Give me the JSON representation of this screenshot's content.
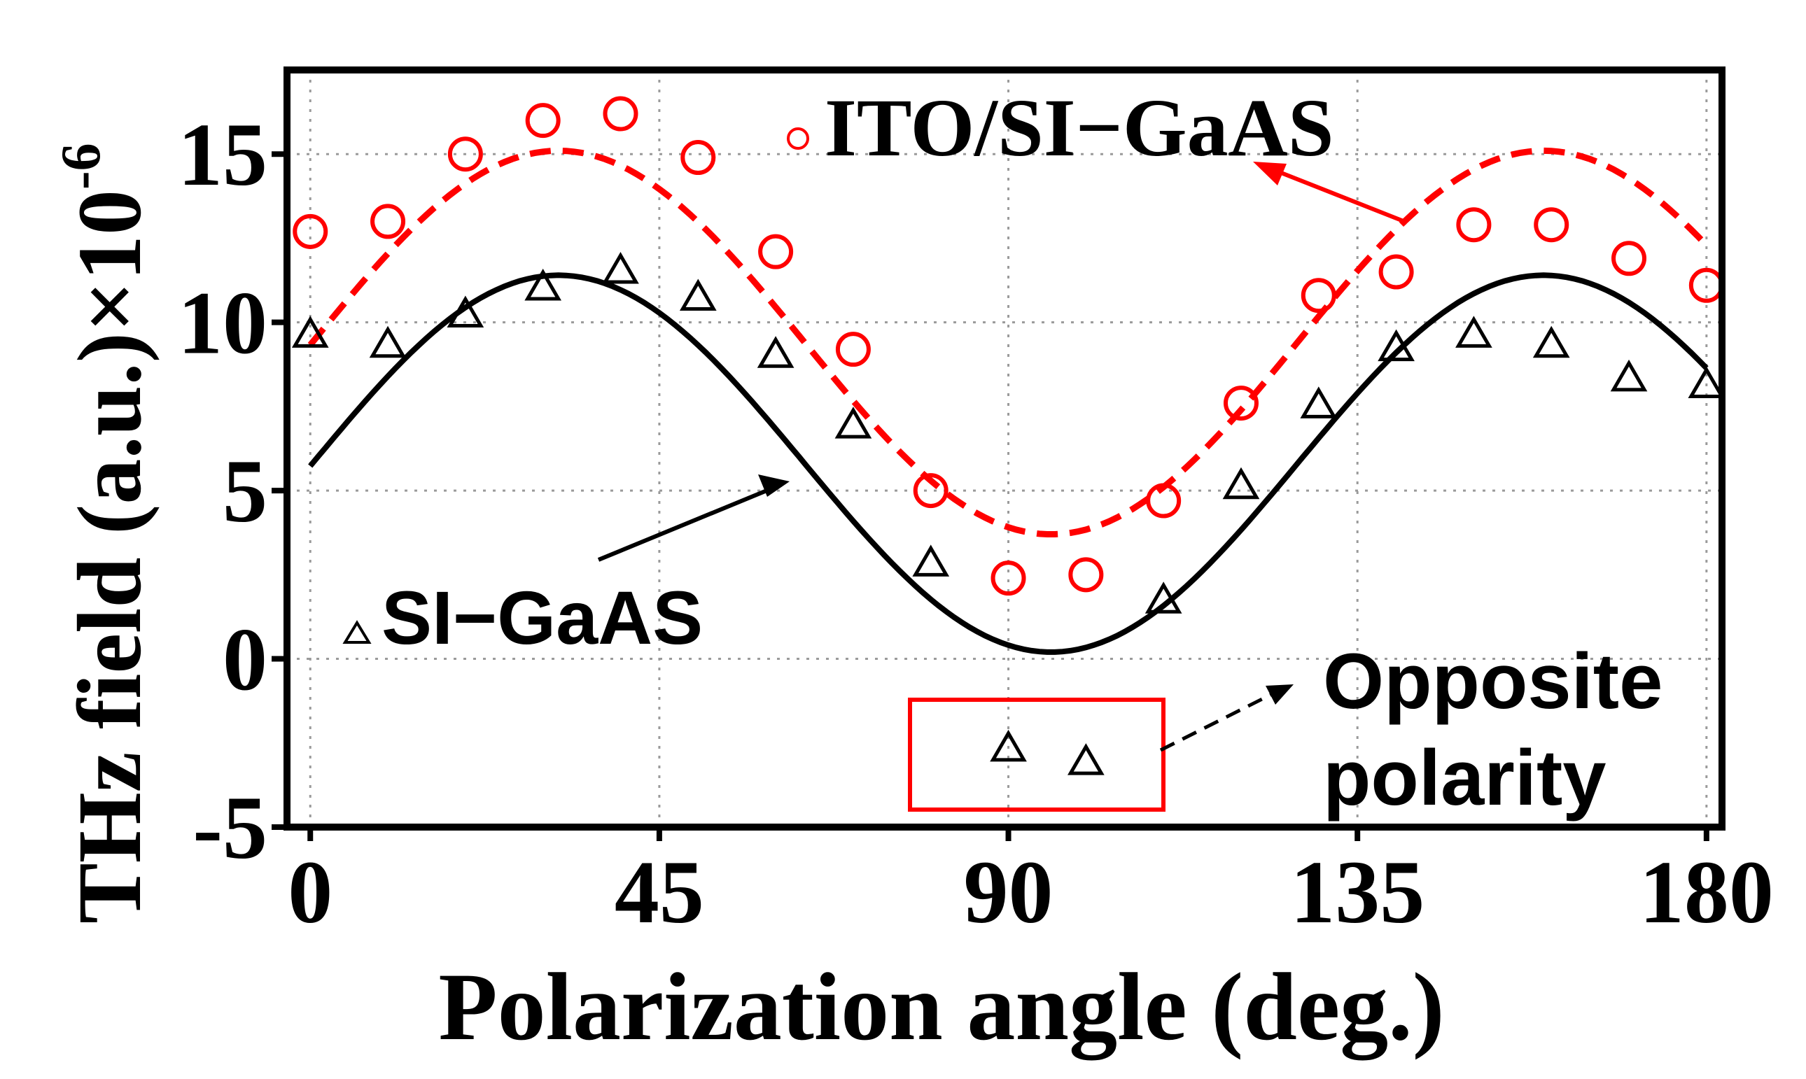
{
  "chart_data": {
    "type": "scatter",
    "xlabel": "Polarization angle (deg.)",
    "ylabel_main": "THz field (a.u.)×10",
    "ylabel_exponent": "-6",
    "xlim": [
      -3,
      182
    ],
    "ylim": [
      -5,
      17.5
    ],
    "xticks": [
      0,
      45,
      90,
      135,
      180
    ],
    "yticks": [
      -5,
      0,
      5,
      10,
      15
    ],
    "grid": "dotted",
    "colors": {
      "ito": "#ff0000",
      "si": "#000000",
      "box": "#ff0000"
    },
    "series": [
      {
        "name": "ITO/SI−GaAS",
        "kind": "scatter",
        "marker": "open-circle",
        "color": "#ff0000",
        "x": [
          0,
          10,
          20,
          30,
          40,
          50,
          60,
          70,
          80,
          90,
          100,
          110,
          120,
          130,
          140,
          150,
          160,
          170,
          180
        ],
        "y": [
          12.7,
          13.0,
          15.0,
          16.0,
          16.2,
          14.9,
          12.1,
          9.2,
          5.0,
          2.4,
          2.5,
          4.7,
          7.6,
          10.8,
          11.5,
          12.9,
          12.9,
          11.9,
          11.1
        ]
      },
      {
        "name": "SI−GaAS",
        "kind": "scatter",
        "marker": "open-triangle",
        "color": "#000000",
        "x": [
          0,
          10,
          20,
          30,
          40,
          50,
          60,
          70,
          80,
          90,
          100,
          110,
          120,
          130,
          140,
          150,
          160,
          170,
          180
        ],
        "y": [
          9.6,
          9.3,
          10.2,
          11.0,
          11.5,
          10.7,
          9.0,
          6.9,
          2.8,
          -2.7,
          -3.1,
          1.7,
          5.1,
          7.5,
          9.2,
          9.6,
          9.3,
          8.3,
          8.1
        ]
      },
      {
        "name": "ITO/SI-GaAS fit",
        "kind": "line",
        "style": "dashed",
        "color": "#ff0000",
        "offset": 9.4,
        "amplitude": 5.7,
        "phase_deg": 32,
        "period_deg": 127,
        "x_range": [
          0,
          180
        ]
      },
      {
        "name": "SI-GaAS fit",
        "kind": "line",
        "style": "solid",
        "color": "#000000",
        "offset": 5.8,
        "amplitude": 5.6,
        "phase_deg": 32,
        "period_deg": 127,
        "x_range": [
          0,
          180
        ]
      }
    ],
    "annotations": {
      "ito_label": "ITO/SI−GaAS",
      "si_label": "SI−GaAS",
      "opposite_line1": "Opposite",
      "opposite_line2": "polarity"
    }
  }
}
